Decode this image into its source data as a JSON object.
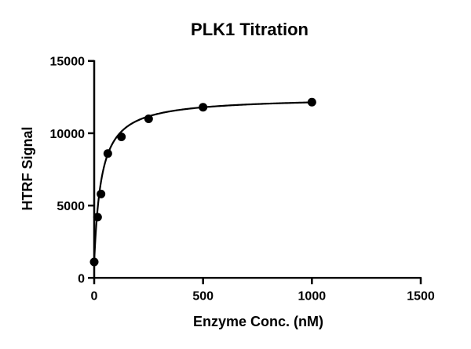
{
  "chart_data": {
    "type": "scatter",
    "title": "PLK1 Titration",
    "xlabel": "Enzyme Conc. (nM)",
    "ylabel": "HTRF Signal",
    "xlim": [
      0,
      1500
    ],
    "ylim": [
      0,
      15000
    ],
    "xticks": [
      "0",
      "500",
      "1000",
      "1500"
    ],
    "yticks": [
      "0",
      "5000",
      "10000",
      "15000"
    ],
    "grid": false,
    "fit_curve": true,
    "series": [
      {
        "x": [
          0,
          15.6,
          31.25,
          62.5,
          125,
          250,
          500,
          1000
        ],
        "y": [
          1100,
          4200,
          5800,
          8600,
          9750,
          11000,
          11800,
          12150
        ]
      }
    ],
    "colors": {
      "marker": "#000000",
      "line": "#000000"
    }
  }
}
